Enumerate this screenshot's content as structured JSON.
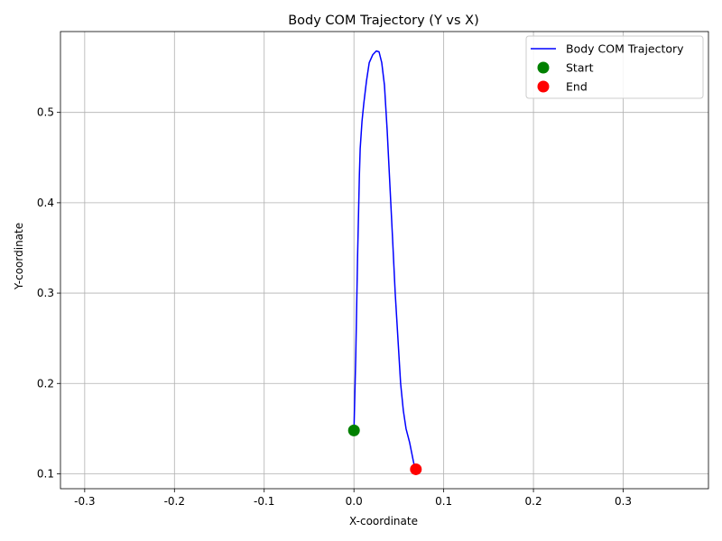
{
  "chart_data": {
    "type": "line",
    "title": "Body COM Trajectory (Y vs X)",
    "xlabel": "X-coordinate",
    "ylabel": "Y-coordinate",
    "xlim": [
      -0.327,
      0.395
    ],
    "ylim": [
      0.0835,
      0.5895
    ],
    "xticks": [
      "-0.3",
      "-0.2",
      "-0.1",
      "0.0",
      "0.1",
      "0.2",
      "0.3"
    ],
    "yticks": [
      "0.1",
      "0.2",
      "0.3",
      "0.4",
      "0.5"
    ],
    "grid": true,
    "legend_position": "top-right",
    "colors": {
      "trajectory": "#0000ff",
      "start": "#008000",
      "end": "#ff0000",
      "grid": "#b0b0b0"
    },
    "series": [
      {
        "name": "Body COM Trajectory",
        "x": [
          0.0,
          0.002,
          0.004,
          0.006,
          0.007,
          0.009,
          0.011,
          0.014,
          0.017,
          0.021,
          0.025,
          0.028,
          0.031,
          0.034,
          0.037,
          0.04,
          0.043,
          0.046,
          0.049,
          0.052,
          0.055,
          0.058,
          0.062,
          0.065,
          0.067,
          0.069
        ],
        "y": [
          0.148,
          0.23,
          0.34,
          0.43,
          0.46,
          0.49,
          0.51,
          0.535,
          0.555,
          0.564,
          0.568,
          0.567,
          0.555,
          0.53,
          0.48,
          0.42,
          0.36,
          0.3,
          0.25,
          0.2,
          0.17,
          0.15,
          0.135,
          0.12,
          0.11,
          0.105
        ]
      },
      {
        "name": "Start",
        "x": [
          0.0
        ],
        "y": [
          0.148
        ]
      },
      {
        "name": "End",
        "x": [
          0.069
        ],
        "y": [
          0.105
        ]
      }
    ]
  }
}
